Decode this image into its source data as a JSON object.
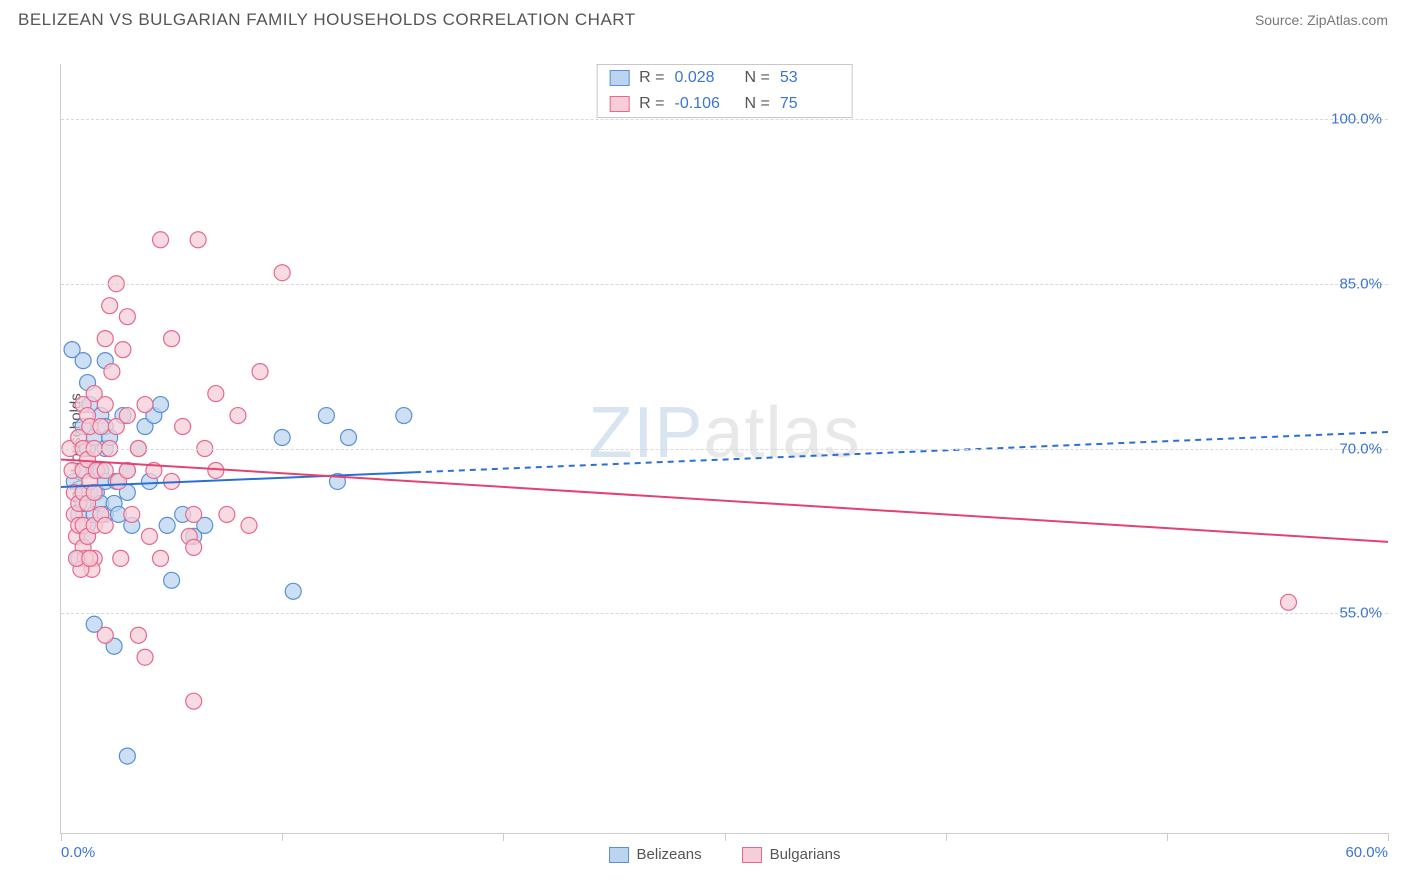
{
  "header": {
    "title": "BELIZEAN VS BULGARIAN FAMILY HOUSEHOLDS CORRELATION CHART",
    "source": "Source: ZipAtlas.com"
  },
  "chart": {
    "type": "scatter",
    "ylabel": "Family Households",
    "watermark_a": "ZIP",
    "watermark_b": "atlas",
    "background_color": "#ffffff",
    "grid_color": "#d8d8d8",
    "axis_color": "#cccccc",
    "xlim": [
      0,
      60
    ],
    "ylim": [
      35,
      105
    ],
    "xticks": [
      0,
      10,
      20,
      30,
      40,
      50,
      60
    ],
    "xtick_labels": {
      "0": "0.0%",
      "60": "60.0%"
    },
    "xtick_label_color": "#3b74d4",
    "yticks": [
      55,
      70,
      85,
      100
    ],
    "ytick_labels": {
      "55": "55.0%",
      "70": "70.0%",
      "85": "85.0%",
      "100": "100.0%"
    },
    "ytick_label_color": "#3b74d4",
    "series": [
      {
        "name": "Belizeans",
        "marker_fill": "#bcd4ef",
        "marker_stroke": "#5a8fd6",
        "marker_radius": 8,
        "line_color": "#2a6fd6",
        "line_width": 2,
        "line_dash_after_x": 16,
        "R": "0.028",
        "N": "53",
        "trend": {
          "x1": 0,
          "y1": 66.5,
          "x2": 60,
          "y2": 71.5
        },
        "points": [
          [
            0.5,
            79
          ],
          [
            0.6,
            67
          ],
          [
            0.8,
            64
          ],
          [
            0.8,
            60
          ],
          [
            1.0,
            78
          ],
          [
            1.0,
            72
          ],
          [
            1.0,
            68
          ],
          [
            1.0,
            65
          ],
          [
            1.2,
            76
          ],
          [
            1.2,
            70
          ],
          [
            1.2,
            63
          ],
          [
            1.2,
            62
          ],
          [
            1.3,
            74
          ],
          [
            1.3,
            66
          ],
          [
            1.5,
            71
          ],
          [
            1.5,
            68
          ],
          [
            1.5,
            64
          ],
          [
            1.6,
            66
          ],
          [
            1.8,
            73
          ],
          [
            1.8,
            68
          ],
          [
            1.8,
            65
          ],
          [
            2.0,
            78
          ],
          [
            2.0,
            72
          ],
          [
            2.0,
            70
          ],
          [
            2.0,
            67
          ],
          [
            2.0,
            64
          ],
          [
            2.2,
            71
          ],
          [
            2.4,
            65
          ],
          [
            2.5,
            67
          ],
          [
            2.6,
            64
          ],
          [
            2.8,
            73
          ],
          [
            3.0,
            68
          ],
          [
            3.0,
            66
          ],
          [
            3.2,
            63
          ],
          [
            3.5,
            70
          ],
          [
            3.8,
            72
          ],
          [
            4.0,
            67
          ],
          [
            4.2,
            73
          ],
          [
            4.5,
            74
          ],
          [
            4.8,
            63
          ],
          [
            5.0,
            58
          ],
          [
            5.5,
            64
          ],
          [
            6.0,
            62
          ],
          [
            6.5,
            63
          ],
          [
            1.5,
            54
          ],
          [
            2.4,
            52
          ],
          [
            3.0,
            42
          ],
          [
            10.0,
            71
          ],
          [
            10.5,
            57
          ],
          [
            12.0,
            73
          ],
          [
            13.0,
            71
          ],
          [
            12.5,
            67
          ],
          [
            15.5,
            73
          ]
        ]
      },
      {
        "name": "Bulgarians",
        "marker_fill": "#f6cdd8",
        "marker_stroke": "#e56a8c",
        "marker_radius": 8,
        "line_color": "#e24372",
        "line_width": 2,
        "R": "-0.106",
        "N": "75",
        "trend": {
          "x1": 0,
          "y1": 69.0,
          "x2": 60,
          "y2": 61.5
        },
        "points": [
          [
            0.4,
            70
          ],
          [
            0.5,
            68
          ],
          [
            0.6,
            66
          ],
          [
            0.6,
            64
          ],
          [
            0.7,
            62
          ],
          [
            0.8,
            71
          ],
          [
            0.8,
            65
          ],
          [
            0.8,
            63
          ],
          [
            1.0,
            74
          ],
          [
            1.0,
            70
          ],
          [
            1.0,
            68
          ],
          [
            1.0,
            66
          ],
          [
            1.0,
            63
          ],
          [
            1.0,
            61
          ],
          [
            1.2,
            73
          ],
          [
            1.2,
            69
          ],
          [
            1.2,
            65
          ],
          [
            1.2,
            62
          ],
          [
            1.3,
            72
          ],
          [
            1.3,
            67
          ],
          [
            1.5,
            75
          ],
          [
            1.5,
            70
          ],
          [
            1.5,
            66
          ],
          [
            1.5,
            63
          ],
          [
            1.5,
            60
          ],
          [
            1.6,
            68
          ],
          [
            1.8,
            72
          ],
          [
            1.8,
            64
          ],
          [
            2.0,
            80
          ],
          [
            2.0,
            74
          ],
          [
            2.0,
            68
          ],
          [
            2.0,
            63
          ],
          [
            2.2,
            83
          ],
          [
            2.2,
            70
          ],
          [
            2.3,
            77
          ],
          [
            2.5,
            85
          ],
          [
            2.5,
            72
          ],
          [
            2.6,
            67
          ],
          [
            2.8,
            79
          ],
          [
            3.0,
            82
          ],
          [
            3.0,
            73
          ],
          [
            3.0,
            68
          ],
          [
            3.2,
            64
          ],
          [
            3.5,
            70
          ],
          [
            3.8,
            74
          ],
          [
            4.0,
            62
          ],
          [
            4.2,
            68
          ],
          [
            4.5,
            89
          ],
          [
            5.0,
            80
          ],
          [
            5.0,
            67
          ],
          [
            5.5,
            72
          ],
          [
            5.8,
            62
          ],
          [
            6.0,
            64
          ],
          [
            6.2,
            89
          ],
          [
            6.5,
            70
          ],
          [
            7.0,
            75
          ],
          [
            7.0,
            68
          ],
          [
            7.5,
            64
          ],
          [
            8.0,
            73
          ],
          [
            8.5,
            63
          ],
          [
            9.0,
            77
          ],
          [
            10.0,
            86
          ],
          [
            3.5,
            53
          ],
          [
            2.0,
            53
          ],
          [
            3.8,
            51
          ],
          [
            6.0,
            47
          ],
          [
            55.5,
            56
          ],
          [
            1.4,
            59
          ],
          [
            2.7,
            60
          ],
          [
            4.5,
            60
          ],
          [
            6.0,
            61
          ],
          [
            1.1,
            60
          ],
          [
            0.9,
            59
          ],
          [
            0.7,
            60
          ],
          [
            1.3,
            60
          ]
        ]
      }
    ],
    "stats_value_color": "#3b74d4",
    "bottom_legend": [
      {
        "label": "Belizeans",
        "fill": "#bcd4ef",
        "stroke": "#5a8fd6"
      },
      {
        "label": "Bulgarians",
        "fill": "#f6cdd8",
        "stroke": "#e56a8c"
      }
    ]
  }
}
